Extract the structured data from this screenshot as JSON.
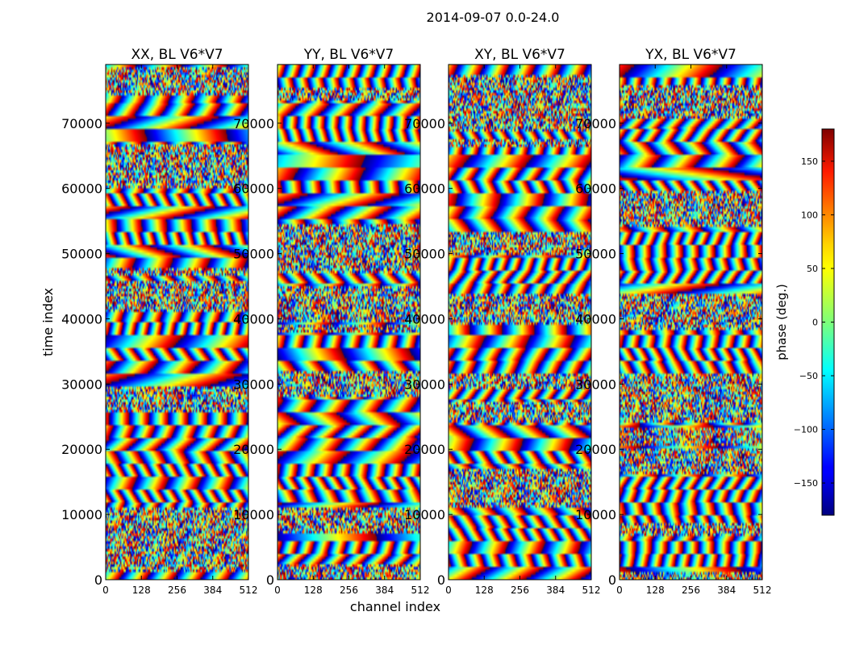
{
  "figure_title": "2014-09-07 0.0-24.0",
  "chart_data": [
    {
      "type": "heatmap",
      "title": "XX, BL V6*V7",
      "xlabel": "",
      "ylabel": "time index",
      "xlim": [
        0,
        512
      ],
      "ylim": [
        0,
        79000
      ],
      "xticks": [
        "0",
        "128",
        "256",
        "384",
        "512"
      ],
      "yticks": [
        "0",
        "10000",
        "20000",
        "30000",
        "40000",
        "50000",
        "60000",
        "70000"
      ],
      "value_range": [
        -180,
        180
      ],
      "colormap": "jet",
      "colorbar": false
    },
    {
      "type": "heatmap",
      "title": "YY, BL V6*V7",
      "xlabel": "channel index",
      "ylabel": "",
      "xlim": [
        0,
        512
      ],
      "ylim": [
        0,
        79000
      ],
      "xticks": [
        "0",
        "128",
        "256",
        "384",
        "512"
      ],
      "yticks": [
        "0",
        "10000",
        "20000",
        "30000",
        "40000",
        "50000",
        "60000",
        "70000"
      ],
      "value_range": [
        -180,
        180
      ],
      "colormap": "jet",
      "colorbar": false
    },
    {
      "type": "heatmap",
      "title": "XY, BL V6*V7",
      "xlabel": "",
      "ylabel": "",
      "xlim": [
        0,
        512
      ],
      "ylim": [
        0,
        79000
      ],
      "xticks": [
        "0",
        "128",
        "256",
        "384",
        "512"
      ],
      "yticks": [
        "0",
        "10000",
        "20000",
        "30000",
        "40000",
        "50000",
        "60000",
        "70000"
      ],
      "value_range": [
        -180,
        180
      ],
      "colormap": "jet",
      "colorbar": false
    },
    {
      "type": "heatmap",
      "title": "YX, BL V6*V7",
      "xlabel": "",
      "ylabel": "",
      "xlim": [
        0,
        512
      ],
      "ylim": [
        0,
        79000
      ],
      "xticks": [
        "0",
        "128",
        "256",
        "384",
        "512"
      ],
      "yticks": [
        "0",
        "10000",
        "20000",
        "30000",
        "40000",
        "50000",
        "60000",
        "70000"
      ],
      "value_range": [
        -180,
        180
      ],
      "colormap": "jet",
      "colorbar": true,
      "colorbar_label": "phase (deg.)",
      "colorbar_ticks": [
        "150",
        "100",
        "50",
        "0",
        "−50",
        "−100",
        "−150"
      ],
      "colorbar_tick_values": [
        150,
        100,
        50,
        0,
        -50,
        -100,
        -150
      ],
      "colorbar_range": [
        -180,
        180
      ]
    }
  ]
}
